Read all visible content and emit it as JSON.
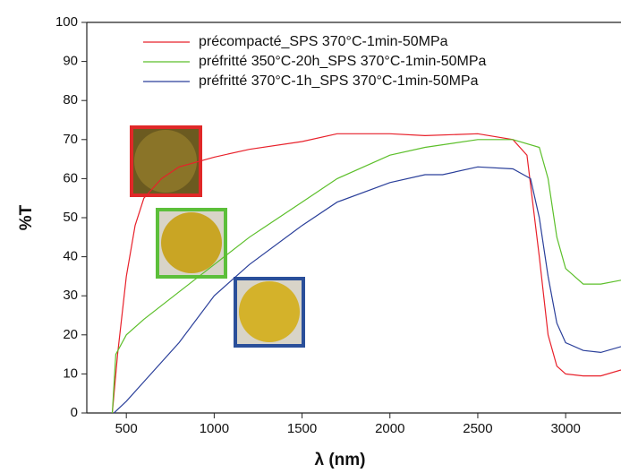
{
  "chart_data": {
    "type": "line",
    "x_label": "λ (nm)",
    "y_label": "%T",
    "xlim": [
      275,
      3315
    ],
    "ylim": [
      0,
      100
    ],
    "xticks": [
      500,
      1000,
      1500,
      2000,
      2500,
      3000
    ],
    "yticks": [
      0,
      10,
      20,
      30,
      40,
      50,
      60,
      70,
      80,
      90,
      100
    ],
    "series": [
      {
        "name": "précompacté_SPS 370°C-1min-50MPa",
        "color": "#e8202a",
        "x": [
          420,
          450,
          500,
          550,
          600,
          700,
          800,
          1000,
          1200,
          1500,
          1700,
          2000,
          2200,
          2500,
          2700,
          2780,
          2850,
          2900,
          2950,
          3000,
          3100,
          3200,
          3315
        ],
        "values": [
          0,
          15,
          35,
          48,
          55,
          60,
          63,
          65.5,
          67.5,
          69.5,
          71.5,
          71.5,
          71,
          71.5,
          70,
          66,
          40,
          20,
          12,
          10,
          9.5,
          9.5,
          11
        ]
      },
      {
        "name": "préfritté 350°C-20h_SPS 370°C-1min-50MPa",
        "color": "#5cbf2a",
        "x": [
          420,
          440,
          500,
          600,
          800,
          1000,
          1200,
          1500,
          1700,
          2000,
          2200,
          2500,
          2700,
          2850,
          2900,
          2950,
          3000,
          3100,
          3200,
          3315
        ],
        "values": [
          0,
          15,
          20,
          24,
          31,
          38,
          45,
          54,
          60,
          66,
          68,
          70,
          70,
          68,
          60,
          45,
          37,
          33,
          33,
          34
        ]
      },
      {
        "name": "préfritté 370°C-1h_SPS 370°C-1min-50MPa",
        "color": "#2a3f9a",
        "x": [
          430,
          500,
          600,
          800,
          1000,
          1200,
          1500,
          1700,
          2000,
          2200,
          2300,
          2500,
          2700,
          2800,
          2850,
          2900,
          2950,
          3000,
          3100,
          3200,
          3315
        ],
        "values": [
          0,
          3,
          8,
          18,
          30,
          38,
          48,
          54,
          59,
          61,
          61,
          63,
          62.5,
          60,
          50,
          35,
          23,
          18,
          16,
          15.5,
          17
        ]
      }
    ]
  }
}
